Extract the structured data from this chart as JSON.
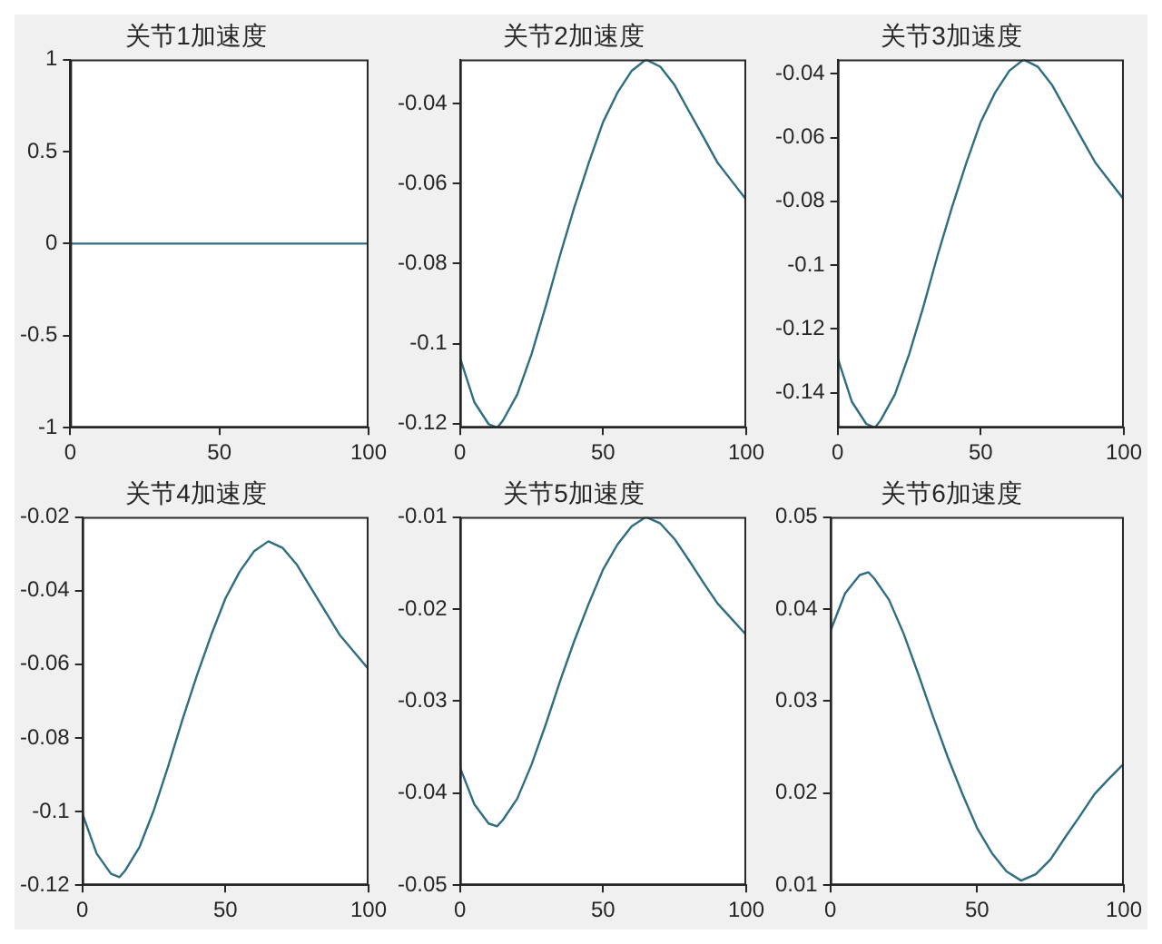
{
  "chart_data": [
    {
      "type": "line",
      "title": "关节1加速度",
      "x": [
        0,
        5,
        10,
        13,
        15,
        20,
        25,
        30,
        35,
        40,
        45,
        50,
        55,
        60,
        65,
        70,
        75,
        80,
        85,
        90,
        95,
        100
      ],
      "series": [
        {
          "color": "#2f6e80",
          "values": [
            0,
            0,
            0,
            0,
            0,
            0,
            0,
            0,
            0,
            0,
            0,
            0,
            0,
            0,
            0,
            0,
            0,
            0,
            0,
            0,
            0,
            0
          ]
        }
      ],
      "xlim": [
        0,
        100
      ],
      "xticks": [
        0,
        50,
        100
      ],
      "ylim": [
        -1,
        1
      ],
      "yticks": [
        -1,
        -0.5,
        0,
        0.5,
        1
      ]
    },
    {
      "type": "line",
      "title": "关节2加速度",
      "x": [
        0,
        5,
        10,
        13,
        15,
        20,
        25,
        30,
        35,
        40,
        45,
        50,
        55,
        60,
        65,
        70,
        75,
        80,
        85,
        90,
        95,
        100
      ],
      "series": [
        {
          "color": "#2f6e80",
          "values": [
            -0.1035,
            -0.1146,
            -0.1201,
            -0.121,
            -0.1192,
            -0.1127,
            -0.1026,
            -0.0906,
            -0.0778,
            -0.0658,
            -0.0548,
            -0.0446,
            -0.0373,
            -0.0318,
            -0.029,
            -0.0308,
            -0.0354,
            -0.0419,
            -0.0483,
            -0.0548,
            -0.0594,
            -0.064
          ]
        }
      ],
      "xlim": [
        0,
        100
      ],
      "xticks": [
        0,
        50,
        100
      ],
      "ylim": [
        -0.121,
        -0.029
      ],
      "yticks": [
        -0.12,
        -0.1,
        -0.08,
        -0.06,
        -0.04
      ]
    },
    {
      "type": "line",
      "title": "关节3加速度",
      "x": [
        0,
        5,
        10,
        13,
        15,
        20,
        25,
        30,
        35,
        40,
        45,
        50,
        55,
        60,
        65,
        70,
        75,
        80,
        85,
        90,
        95,
        100
      ],
      "series": [
        {
          "color": "#2f6e80",
          "values": [
            -0.1291,
            -0.1429,
            -0.1498,
            -0.151,
            -0.1487,
            -0.1406,
            -0.1279,
            -0.1129,
            -0.0967,
            -0.0817,
            -0.0678,
            -0.0551,
            -0.0459,
            -0.039,
            -0.0355,
            -0.0378,
            -0.0436,
            -0.0517,
            -0.0598,
            -0.0678,
            -0.0736,
            -0.0794
          ]
        }
      ],
      "xlim": [
        0,
        100
      ],
      "xticks": [
        0,
        50,
        100
      ],
      "ylim": [
        -0.151,
        -0.0355
      ],
      "yticks": [
        -0.14,
        -0.12,
        -0.1,
        -0.08,
        -0.06,
        -0.04
      ]
    },
    {
      "type": "line",
      "title": "关节4加速度",
      "x": [
        0,
        5,
        10,
        13,
        15,
        20,
        25,
        30,
        35,
        40,
        45,
        50,
        55,
        60,
        65,
        70,
        75,
        80,
        85,
        90,
        95,
        100
      ],
      "series": [
        {
          "color": "#2f6e80",
          "values": [
            -0.1005,
            -0.1114,
            -0.1169,
            -0.1178,
            -0.116,
            -0.1096,
            -0.0996,
            -0.0877,
            -0.075,
            -0.0631,
            -0.0521,
            -0.0421,
            -0.0348,
            -0.0293,
            -0.0266,
            -0.0284,
            -0.033,
            -0.0394,
            -0.0458,
            -0.0521,
            -0.0567,
            -0.0613
          ]
        }
      ],
      "xlim": [
        0,
        100
      ],
      "xticks": [
        0,
        50,
        100
      ],
      "ylim": [
        -0.12,
        -0.02
      ],
      "yticks": [
        -0.12,
        -0.1,
        -0.08,
        -0.06,
        -0.04,
        -0.02
      ]
    },
    {
      "type": "line",
      "title": "关节5加速度",
      "x": [
        0,
        5,
        10,
        13,
        15,
        20,
        25,
        30,
        35,
        40,
        45,
        50,
        55,
        60,
        65,
        70,
        75,
        80,
        85,
        90,
        95,
        100
      ],
      "series": [
        {
          "color": "#2f6e80",
          "values": [
            -0.0372,
            -0.0412,
            -0.0433,
            -0.0436,
            -0.0429,
            -0.0406,
            -0.0369,
            -0.0325,
            -0.0278,
            -0.0234,
            -0.0194,
            -0.0157,
            -0.013,
            -0.011,
            -0.01,
            -0.0107,
            -0.0124,
            -0.0147,
            -0.0171,
            -0.0194,
            -0.0211,
            -0.0228
          ]
        }
      ],
      "xlim": [
        0,
        100
      ],
      "xticks": [
        0,
        50,
        100
      ],
      "ylim": [
        -0.05,
        -0.01
      ],
      "yticks": [
        -0.05,
        -0.04,
        -0.03,
        -0.02,
        -0.01
      ]
    },
    {
      "type": "line",
      "title": "关节6加速度",
      "x": [
        0,
        5,
        10,
        13,
        15,
        20,
        25,
        30,
        35,
        40,
        45,
        50,
        55,
        60,
        65,
        70,
        75,
        80,
        85,
        90,
        95,
        100
      ],
      "series": [
        {
          "color": "#2f6e80",
          "values": [
            0.0376,
            0.0417,
            0.0437,
            0.044,
            0.0433,
            0.041,
            0.0373,
            0.0329,
            0.0283,
            0.0239,
            0.0199,
            0.0162,
            0.0135,
            0.0115,
            0.0105,
            0.0112,
            0.0128,
            0.0152,
            0.0175,
            0.0199,
            0.0216,
            0.0232
          ]
        }
      ],
      "xlim": [
        0,
        100
      ],
      "xticks": [
        0,
        50,
        100
      ],
      "ylim": [
        0.01,
        0.05
      ],
      "yticks": [
        0.01,
        0.02,
        0.03,
        0.04,
        0.05
      ]
    }
  ]
}
